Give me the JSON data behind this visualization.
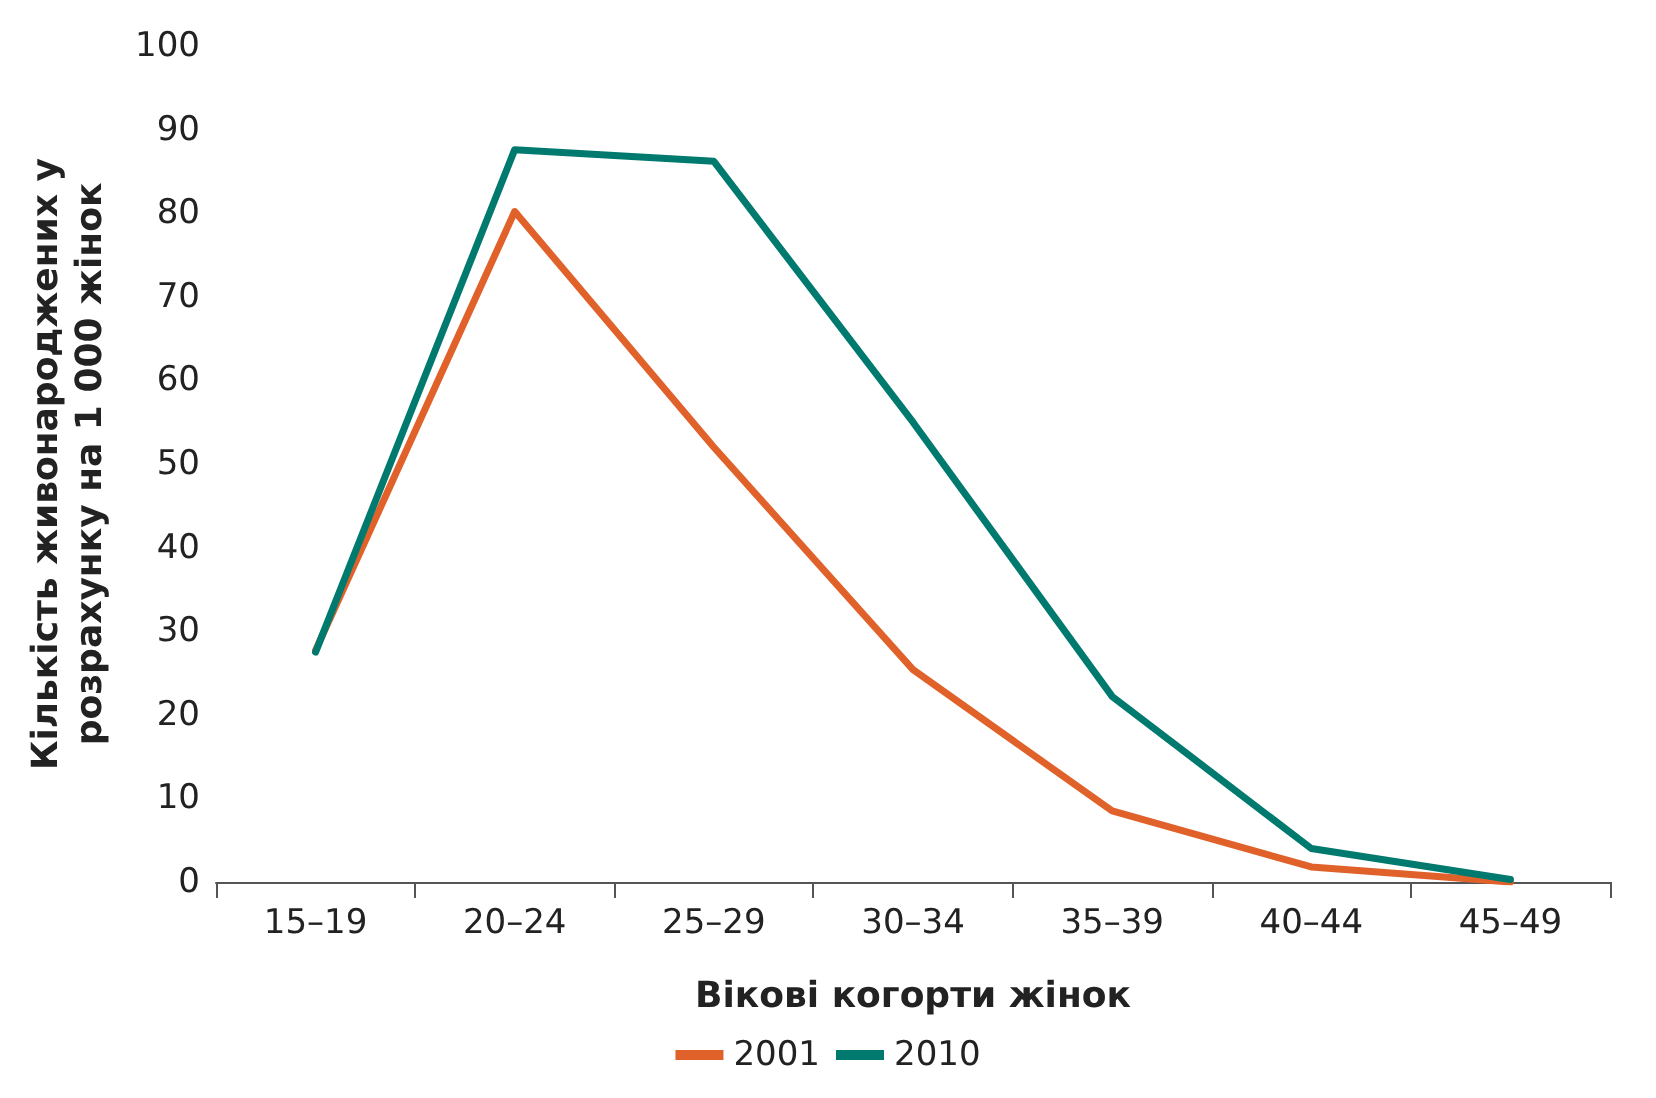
{
  "chart_data": {
    "type": "line",
    "xlabel": "Вікові когорти жінок",
    "ylabel": "Кількість живонароджених у розрахунку на 1 000 жінок",
    "categories": [
      "15–19",
      "20–24",
      "25–29",
      "30–34",
      "35–39",
      "40–44",
      "45–49"
    ],
    "series": [
      {
        "name": "2001",
        "color": "#e0622a",
        "values": [
          27.7,
          80.2,
          52,
          25.4,
          8.5,
          1.8,
          0
        ]
      },
      {
        "name": "2010",
        "color": "#007a6e",
        "values": [
          27.5,
          87.6,
          86.2,
          55,
          22.2,
          4,
          0.3
        ]
      }
    ],
    "ylim": [
      0,
      100
    ],
    "yticks": [
      0,
      10,
      20,
      30,
      40,
      50,
      60,
      70,
      80,
      90,
      100
    ],
    "grid": false,
    "legend": "bottom",
    "marker": "none",
    "line_style": "solid"
  }
}
